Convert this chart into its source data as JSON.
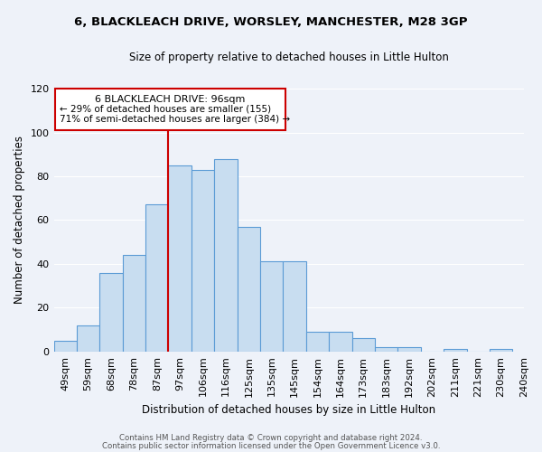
{
  "title": "6, BLACKLEACH DRIVE, WORSLEY, MANCHESTER, M28 3GP",
  "subtitle": "Size of property relative to detached houses in Little Hulton",
  "xlabel": "Distribution of detached houses by size in Little Hulton",
  "ylabel": "Number of detached properties",
  "bin_labels": [
    "49sqm",
    "59sqm",
    "68sqm",
    "78sqm",
    "87sqm",
    "97sqm",
    "106sqm",
    "116sqm",
    "125sqm",
    "135sqm",
    "145sqm",
    "154sqm",
    "164sqm",
    "173sqm",
    "183sqm",
    "192sqm",
    "202sqm",
    "211sqm",
    "221sqm",
    "230sqm",
    "240sqm"
  ],
  "bar_values": [
    5,
    12,
    36,
    44,
    67,
    85,
    83,
    88,
    57,
    41,
    41,
    9,
    9,
    6,
    2,
    2,
    0,
    1,
    0,
    1
  ],
  "bar_color": "#c8ddf0",
  "bar_edge_color": "#5b9bd5",
  "vline_x_index": 5,
  "vline_color": "#cc0000",
  "annotation_title": "6 BLACKLEACH DRIVE: 96sqm",
  "annotation_line1": "← 29% of detached houses are smaller (155)",
  "annotation_line2": "71% of semi-detached houses are larger (384) →",
  "annotation_box_edge": "#cc0000",
  "ylim": [
    0,
    120
  ],
  "yticks": [
    0,
    20,
    40,
    60,
    80,
    100,
    120
  ],
  "footer1": "Contains HM Land Registry data © Crown copyright and database right 2024.",
  "footer2": "Contains public sector information licensed under the Open Government Licence v3.0.",
  "background_color": "#eef2f9",
  "plot_background": "#eef2f9",
  "grid_color": "#ffffff"
}
